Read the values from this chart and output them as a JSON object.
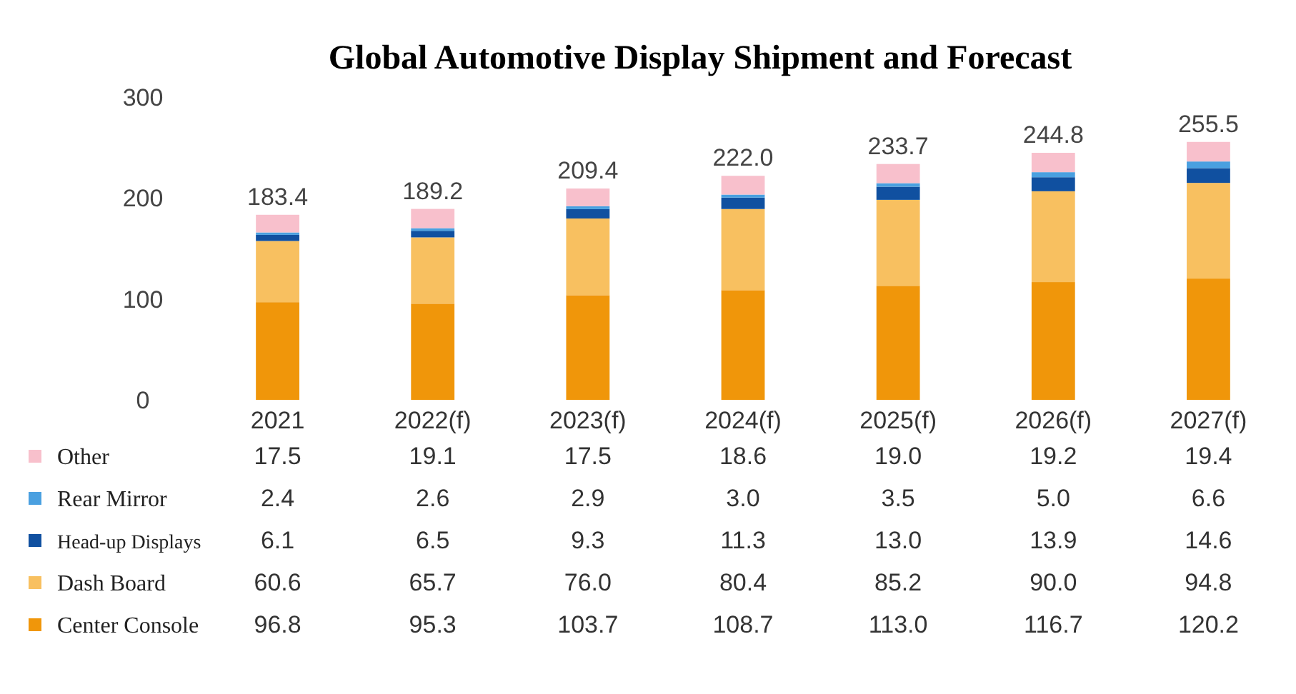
{
  "chart_data": {
    "type": "bar",
    "title": "Global Automotive Display Shipment and Forecast",
    "stacked": true,
    "legend": "bottom",
    "grid": false,
    "categories": [
      "2021",
      "2022(f)",
      "2023(f)",
      "2024(f)",
      "2025(f)",
      "2026(f)",
      "2027(f)"
    ],
    "ylim": [
      0,
      300
    ],
    "yticks": [
      0,
      100,
      200,
      300
    ],
    "totals": [
      "183.4",
      "189.2",
      "209.4",
      "222.0",
      "233.7",
      "244.8",
      "255.5"
    ],
    "series": [
      {
        "name": "Center Console",
        "color": "#f0960a",
        "values": [
          96.8,
          95.3,
          103.7,
          108.7,
          113.0,
          116.7,
          120.2
        ],
        "value_labels": [
          "96.8",
          "95.3",
          "103.7",
          "108.7",
          "113.0",
          "116.7",
          "120.2"
        ]
      },
      {
        "name": "Dash Board",
        "color": "#f8c060",
        "values": [
          60.6,
          65.7,
          76.0,
          80.4,
          85.2,
          90.0,
          94.8
        ],
        "value_labels": [
          "60.6",
          "65.7",
          "76.0",
          "80.4",
          "85.2",
          "90.0",
          "94.8"
        ]
      },
      {
        "name": "Head-up Displays",
        "color": "#1050a0",
        "values": [
          6.1,
          6.5,
          9.3,
          11.3,
          13.0,
          13.9,
          14.6
        ],
        "value_labels": [
          "6.1",
          "6.5",
          "9.3",
          "11.3",
          "13.0",
          "13.9",
          "14.6"
        ]
      },
      {
        "name": "Rear Mirror",
        "color": "#4aa0e0",
        "values": [
          2.4,
          2.6,
          2.9,
          3.0,
          3.5,
          5.0,
          6.6
        ],
        "value_labels": [
          "2.4",
          "2.6",
          "2.9",
          "3.0",
          "3.5",
          "5.0",
          "6.6"
        ]
      },
      {
        "name": "Other",
        "color": "#f8c0cc",
        "values": [
          17.5,
          19.1,
          17.5,
          18.6,
          19.0,
          19.2,
          19.4
        ],
        "value_labels": [
          "17.5",
          "19.1",
          "17.5",
          "18.6",
          "19.0",
          "19.2",
          "19.4"
        ]
      }
    ]
  }
}
